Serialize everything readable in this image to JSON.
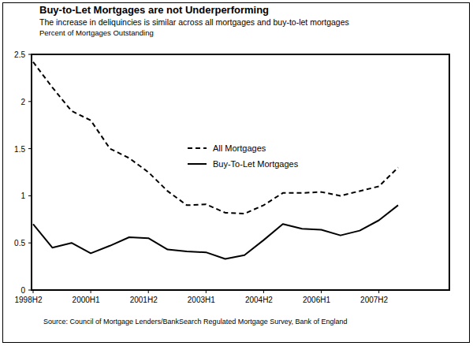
{
  "chart_data": {
    "type": "line",
    "title": "Buy-to-Let Mortgages are not Underperforming",
    "subtitle": "The increase in deliquincies is similar across all mortgages and buy-to-let mortgages",
    "y_label": "Percent of Mortgages Outstanding",
    "source": "Source: Council of Mortgage Lenders/BankSearch Regulated Mortgage Survey, Bank of England",
    "categories": [
      "1998H2",
      null,
      null,
      "2000H1",
      null,
      null,
      "2001H2",
      null,
      null,
      "2003H1",
      null,
      null,
      "2004H2",
      null,
      null,
      "2006H1",
      null,
      null,
      "2007H2",
      null
    ],
    "series": [
      {
        "name": "All Mortgages",
        "color": "#000000",
        "line_style": "dashed",
        "values": [
          2.42,
          2.15,
          1.9,
          1.8,
          1.5,
          1.4,
          1.25,
          1.05,
          0.9,
          0.91,
          0.82,
          0.81,
          0.9,
          1.03,
          1.03,
          1.04,
          1.0,
          1.05,
          1.1,
          1.3
        ]
      },
      {
        "name": "Buy-To-Let Mortgages",
        "color": "#000000",
        "line_style": "solid",
        "values": [
          0.7,
          0.45,
          0.5,
          0.39,
          0.47,
          0.56,
          0.55,
          0.43,
          0.41,
          0.4,
          0.33,
          0.37,
          0.53,
          0.7,
          0.65,
          0.64,
          0.58,
          0.63,
          0.74,
          0.9
        ]
      }
    ],
    "ylim": [
      0,
      2.5
    ],
    "yticks": [
      0,
      0.5,
      1,
      1.5,
      2,
      2.5
    ],
    "grid": false,
    "legend": "center"
  }
}
